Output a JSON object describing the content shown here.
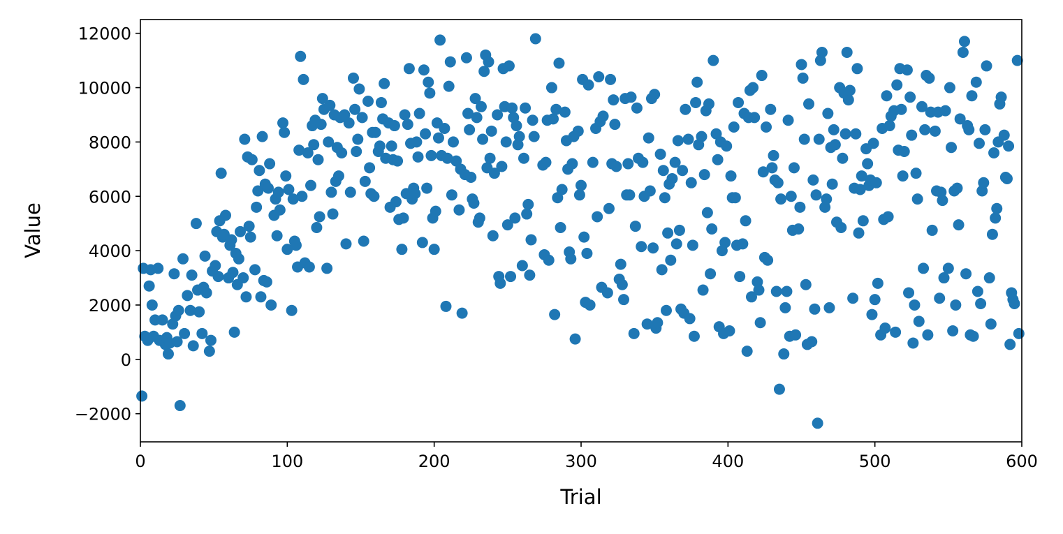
{
  "chart_data": {
    "type": "scatter",
    "xlabel": "Trial",
    "ylabel": "Value",
    "color": "#1f77b4",
    "xlim": [
      0,
      600
    ],
    "ylim": [
      -3036,
      12506
    ],
    "xticks": [
      0,
      100,
      200,
      300,
      400,
      500,
      600
    ],
    "yticks": [
      {
        "value": -2000,
        "label": "−2000"
      },
      0,
      2000,
      4000,
      6000,
      8000,
      10000,
      12000
    ],
    "x": [
      1,
      2,
      3,
      5,
      6,
      7,
      8,
      9,
      10,
      12,
      13,
      15,
      17,
      18,
      19,
      20,
      22,
      23,
      24,
      25,
      26,
      27,
      29,
      30,
      32,
      34,
      35,
      36,
      38,
      39,
      40,
      42,
      43,
      44,
      45,
      47,
      48,
      49,
      51,
      52,
      53,
      54,
      55,
      56,
      57,
      58,
      60,
      61,
      62,
      63,
      64,
      65,
      66,
      67,
      68,
      70,
      71,
      72,
      73,
      74,
      75,
      76,
      78,
      79,
      80,
      81,
      82,
      83,
      84,
      85,
      86,
      87,
      88,
      89,
      91,
      92,
      93,
      94,
      95,
      97,
      98,
      99,
      100,
      101,
      103,
      104,
      105,
      106,
      107,
      108,
      109,
      110,
      111,
      112,
      114,
      115,
      116,
      117,
      118,
      119,
      120,
      121,
      122,
      123,
      124,
      125,
      127,
      128,
      129,
      130,
      131,
      132,
      133,
      134,
      135,
      136,
      137,
      139,
      140,
      142,
      143,
      145,
      146,
      147,
      148,
      149,
      151,
      152,
      153,
      155,
      156,
      157,
      158,
      159,
      160,
      162,
      163,
      164,
      165,
      166,
      167,
      169,
      170,
      171,
      172,
      173,
      174,
      175,
      176,
      178,
      179,
      180,
      181,
      182,
      183,
      184,
      185,
      186,
      187,
      188,
      189,
      190,
      192,
      193,
      194,
      195,
      196,
      197,
      198,
      199,
      200,
      201,
      202,
      203,
      204,
      205,
      207,
      208,
      209,
      210,
      211,
      212,
      213,
      215,
      217,
      218,
      219,
      221,
      222,
      223,
      224,
      225,
      226,
      227,
      228,
      229,
      230,
      231,
      232,
      233,
      234,
      235,
      236,
      237,
      238,
      239,
      240,
      241,
      243,
      244,
      245,
      246,
      247,
      248,
      249,
      250,
      251,
      252,
      253,
      254,
      255,
      256,
      257,
      258,
      260,
      261,
      262,
      263,
      264,
      265,
      266,
      267,
      268,
      269,
      274,
      275,
      276,
      277,
      278,
      280,
      281,
      282,
      283,
      284,
      285,
      286,
      287,
      289,
      290,
      291,
      292,
      293,
      294,
      295,
      296,
      298,
      299,
      300,
      301,
      302,
      303,
      304,
      305,
      306,
      308,
      310,
      311,
      312,
      313,
      314,
      315,
      318,
      319,
      320,
      321,
      322,
      323,
      324,
      326,
      327,
      328,
      329,
      330,
      331,
      332,
      333,
      334,
      336,
      337,
      338,
      339,
      341,
      342,
      343,
      345,
      346,
      347,
      348,
      349,
      350,
      351,
      352,
      354,
      355,
      356,
      357,
      358,
      359,
      360,
      361,
      362,
      364,
      365,
      366,
      367,
      368,
      369,
      370,
      371,
      373,
      374,
      375,
      376,
      377,
      378,
      379,
      380,
      382,
      383,
      384,
      385,
      386,
      387,
      388,
      389,
      390,
      392,
      393,
      394,
      395,
      396,
      397,
      398,
      399,
      401,
      402,
      403,
      404,
      405,
      406,
      407,
      408,
      410,
      411,
      412,
      413,
      414,
      415,
      416,
      417,
      418,
      420,
      421,
      422,
      423,
      424,
      425,
      426,
      427,
      429,
      430,
      431,
      432,
      433,
      434,
      435,
      436,
      438,
      439,
      440,
      441,
      442,
      443,
      444,
      445,
      446,
      448,
      449,
      450,
      451,
      452,
      453,
      454,
      455,
      457,
      458,
      459,
      460,
      461,
      462,
      463,
      464,
      466,
      467,
      468,
      469,
      470,
      471,
      472,
      473,
      474,
      476,
      477,
      478,
      479,
      480,
      481,
      482,
      483,
      485,
      486,
      487,
      488,
      489,
      490,
      491,
      492,
      494,
      495,
      496,
      497,
      498,
      499,
      500,
      501,
      502,
      504,
      505,
      506,
      507,
      508,
      509,
      510,
      511,
      513,
      514,
      515,
      516,
      517,
      518,
      519,
      520,
      522,
      523,
      524,
      525,
      526,
      527,
      528,
      529,
      530,
      532,
      533,
      534,
      535,
      536,
      537,
      538,
      539,
      541,
      542,
      543,
      544,
      545,
      546,
      547,
      548,
      550,
      551,
      552,
      553,
      554,
      555,
      556,
      557,
      558,
      560,
      561,
      562,
      563,
      564,
      565,
      566,
      567,
      569,
      570,
      571,
      572,
      573,
      574,
      575,
      576,
      578,
      579,
      580,
      581,
      582,
      583,
      584,
      585,
      586,
      588,
      589,
      590,
      591,
      592,
      593,
      594,
      595,
      597,
      598
    ],
    "values": [
      -1350,
      3350,
      850,
      700,
      2700,
      3300,
      2000,
      850,
      1450,
      3350,
      700,
      1450,
      550,
      800,
      200,
      600,
      1300,
      3150,
      1600,
      650,
      1800,
      -1700,
      3700,
      950,
      2350,
      1800,
      3100,
      500,
      5000,
      2550,
      1750,
      950,
      2650,
      3800,
      2450,
      300,
      700,
      3250,
      3450,
      4700,
      3050,
      5100,
      6850,
      4500,
      4600,
      5300,
      3000,
      4200,
      4400,
      3200,
      1000,
      3900,
      2750,
      3700,
      4700,
      3000,
      8100,
      2300,
      7450,
      4900,
      4500,
      7350,
      3300,
      5600,
      6200,
      6950,
      2300,
      8200,
      2900,
      6450,
      2850,
      6300,
      7200,
      2000,
      5300,
      5900,
      4550,
      6150,
      5500,
      8700,
      8350,
      6750,
      4050,
      6250,
      1800,
      5900,
      4350,
      4200,
      3400,
      7700,
      11150,
      6000,
      10300,
      3550,
      7600,
      3400,
      6400,
      8600,
      7900,
      8800,
      4850,
      7350,
      5250,
      8650,
      9600,
      9200,
      3350,
      8000,
      9350,
      6150,
      5350,
      9000,
      6550,
      7800,
      6750,
      8900,
      7600,
      9000,
      4250,
      8700,
      6150,
      10350,
      9200,
      7650,
      8100,
      9950,
      8900,
      4350,
      6550,
      9500,
      7050,
      6100,
      8350,
      6000,
      8350,
      7650,
      7850,
      9450,
      8850,
      10150,
      7400,
      8700,
      5600,
      7850,
      7350,
      8600,
      5800,
      7300,
      5150,
      4050,
      5200,
      9000,
      6100,
      8650,
      10700,
      7950,
      5900,
      6300,
      6100,
      8000,
      7450,
      9050,
      4300,
      10650,
      8300,
      6300,
      10200,
      9800,
      7500,
      5200,
      4050,
      5450,
      8700,
      8150,
      11750,
      7500,
      8500,
      1950,
      7400,
      10050,
      10950,
      6050,
      8000,
      7300,
      5500,
      7000,
      1700,
      6800,
      11100,
      9050,
      8450,
      6700,
      5900,
      5750,
      9600,
      8900,
      5050,
      5200,
      9300,
      8100,
      10600,
      11200,
      7050,
      10950,
      7400,
      8400,
      4550,
      6850,
      9000,
      3050,
      2800,
      7100,
      10700,
      9300,
      8000,
      4950,
      10800,
      3050,
      9250,
      8900,
      5200,
      8600,
      7900,
      8200,
      3450,
      7400,
      9250,
      5350,
      5700,
      3100,
      4400,
      8800,
      8200,
      11800,
      7150,
      3850,
      7250,
      8800,
      3650,
      10000,
      8850,
      1650,
      9200,
      5950,
      10900,
      4850,
      6250,
      9100,
      8050,
      7000,
      3950,
      3700,
      7200,
      8200,
      750,
      8400,
      6050,
      6400,
      10300,
      4500,
      2100,
      3900,
      10100,
      2000,
      7250,
      8500,
      5250,
      10400,
      8750,
      2650,
      8950,
      2450,
      5550,
      10300,
      7200,
      9550,
      8650,
      7100,
      2950,
      3500,
      2750,
      2200,
      9600,
      6050,
      7200,
      6050,
      9650,
      950,
      4900,
      9250,
      7400,
      4150,
      7250,
      6000,
      1300,
      8150,
      6200,
      9600,
      4100,
      9750,
      1150,
      1350,
      7550,
      3300,
      6950,
      5950,
      1800,
      4650,
      6450,
      3650,
      6650,
      7250,
      4250,
      8050,
      4750,
      1850,
      6950,
      1700,
      9200,
      8100,
      1500,
      6500,
      4200,
      850,
      9450,
      10200,
      7900,
      8200,
      2550,
      6800,
      9150,
      5400,
      9400,
      3150,
      4800,
      11000,
      8300,
      7350,
      1200,
      8000,
      4000,
      950,
      4300,
      7850,
      1050,
      6750,
      5950,
      8550,
      5950,
      4200,
      9450,
      3050,
      4250,
      9050,
      5100,
      300,
      8900,
      9900,
      2300,
      10000,
      8900,
      2850,
      2550,
      1350,
      10450,
      6900,
      3750,
      8550,
      3650,
      9200,
      7050,
      7500,
      6600,
      2500,
      6500,
      -1100,
      5900,
      200,
      1900,
      2500,
      8800,
      850,
      6000,
      4750,
      7050,
      900,
      4800,
      5600,
      10850,
      10350,
      8100,
      2750,
      550,
      9400,
      650,
      6600,
      1850,
      6050,
      -2350,
      8100,
      11000,
      11300,
      5600,
      5900,
      9050,
      1900,
      7800,
      6450,
      8450,
      7900,
      5050,
      10000,
      4850,
      7400,
      9800,
      8300,
      11300,
      9550,
      9900,
      2250,
      6300,
      8300,
      10700,
      4650,
      6250,
      6750,
      5100,
      7750,
      7200,
      6400,
      6600,
      1650,
      7950,
      2200,
      6500,
      2800,
      900,
      8500,
      5150,
      1150,
      9700,
      5250,
      8600,
      8950,
      9150,
      1000,
      10100,
      7700,
      10700,
      9200,
      6750,
      7650,
      10650,
      2450,
      9650,
      8250,
      600,
      2000,
      6850,
      5900,
      1400,
      9300,
      3350,
      8450,
      10450,
      900,
      10350,
      9100,
      4750,
      8400,
      6200,
      9100,
      2250,
      6150,
      5850,
      3000,
      9150,
      3350,
      10000,
      7800,
      1050,
      6200,
      2000,
      6300,
      4950,
      8850,
      11300,
      11700,
      3150,
      8600,
      8450,
      900,
      9700,
      850,
      10200,
      2500,
      7950,
      2050,
      6200,
      6500,
      8450,
      10800,
      3000,
      1300,
      4600,
      7600,
      5200,
      5550,
      8000,
      9400,
      9650,
      8250,
      6700,
      6650,
      7850,
      550,
      2450,
      2200,
      2050,
      11000,
      950
    ]
  }
}
